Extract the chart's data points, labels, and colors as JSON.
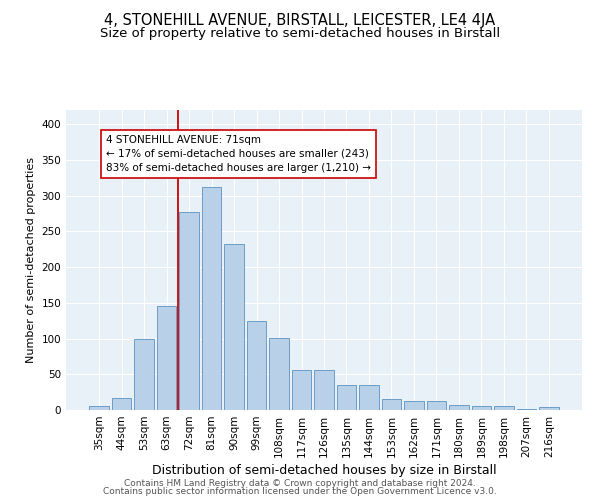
{
  "title": "4, STONEHILL AVENUE, BIRSTALL, LEICESTER, LE4 4JA",
  "subtitle": "Size of property relative to semi-detached houses in Birstall",
  "xlabel": "Distribution of semi-detached houses by size in Birstall",
  "ylabel": "Number of semi-detached properties",
  "categories": [
    "35sqm",
    "44sqm",
    "53sqm",
    "63sqm",
    "72sqm",
    "81sqm",
    "90sqm",
    "99sqm",
    "108sqm",
    "117sqm",
    "126sqm",
    "135sqm",
    "144sqm",
    "153sqm",
    "162sqm",
    "171sqm",
    "180sqm",
    "189sqm",
    "198sqm",
    "207sqm",
    "216sqm"
  ],
  "bar_heights": [
    5,
    17,
    99,
    146,
    277,
    312,
    232,
    125,
    101,
    56,
    56,
    35,
    35,
    16,
    13,
    12,
    7,
    5,
    5,
    2,
    4
  ],
  "bar_color": "#b8d0e8",
  "bar_edge_color": "#6a9dc8",
  "annotation_text1": "4 STONEHILL AVENUE: 71sqm",
  "annotation_text2": "← 17% of semi-detached houses are smaller (243)",
  "annotation_text3": "83% of semi-detached houses are larger (1,210) →",
  "vline_color": "#cc0000",
  "annotation_box_color": "#ffffff",
  "annotation_box_edge": "#cc0000",
  "footer1": "Contains HM Land Registry data © Crown copyright and database right 2024.",
  "footer2": "Contains public sector information licensed under the Open Government Licence v3.0.",
  "bg_color": "#e8f0f8",
  "ylim": [
    0,
    420
  ],
  "yticks": [
    0,
    50,
    100,
    150,
    200,
    250,
    300,
    350,
    400
  ],
  "title_fontsize": 10.5,
  "subtitle_fontsize": 9.5,
  "xlabel_fontsize": 9,
  "ylabel_fontsize": 8,
  "tick_fontsize": 7.5,
  "footer_fontsize": 6.5,
  "red_line_bin": 4
}
